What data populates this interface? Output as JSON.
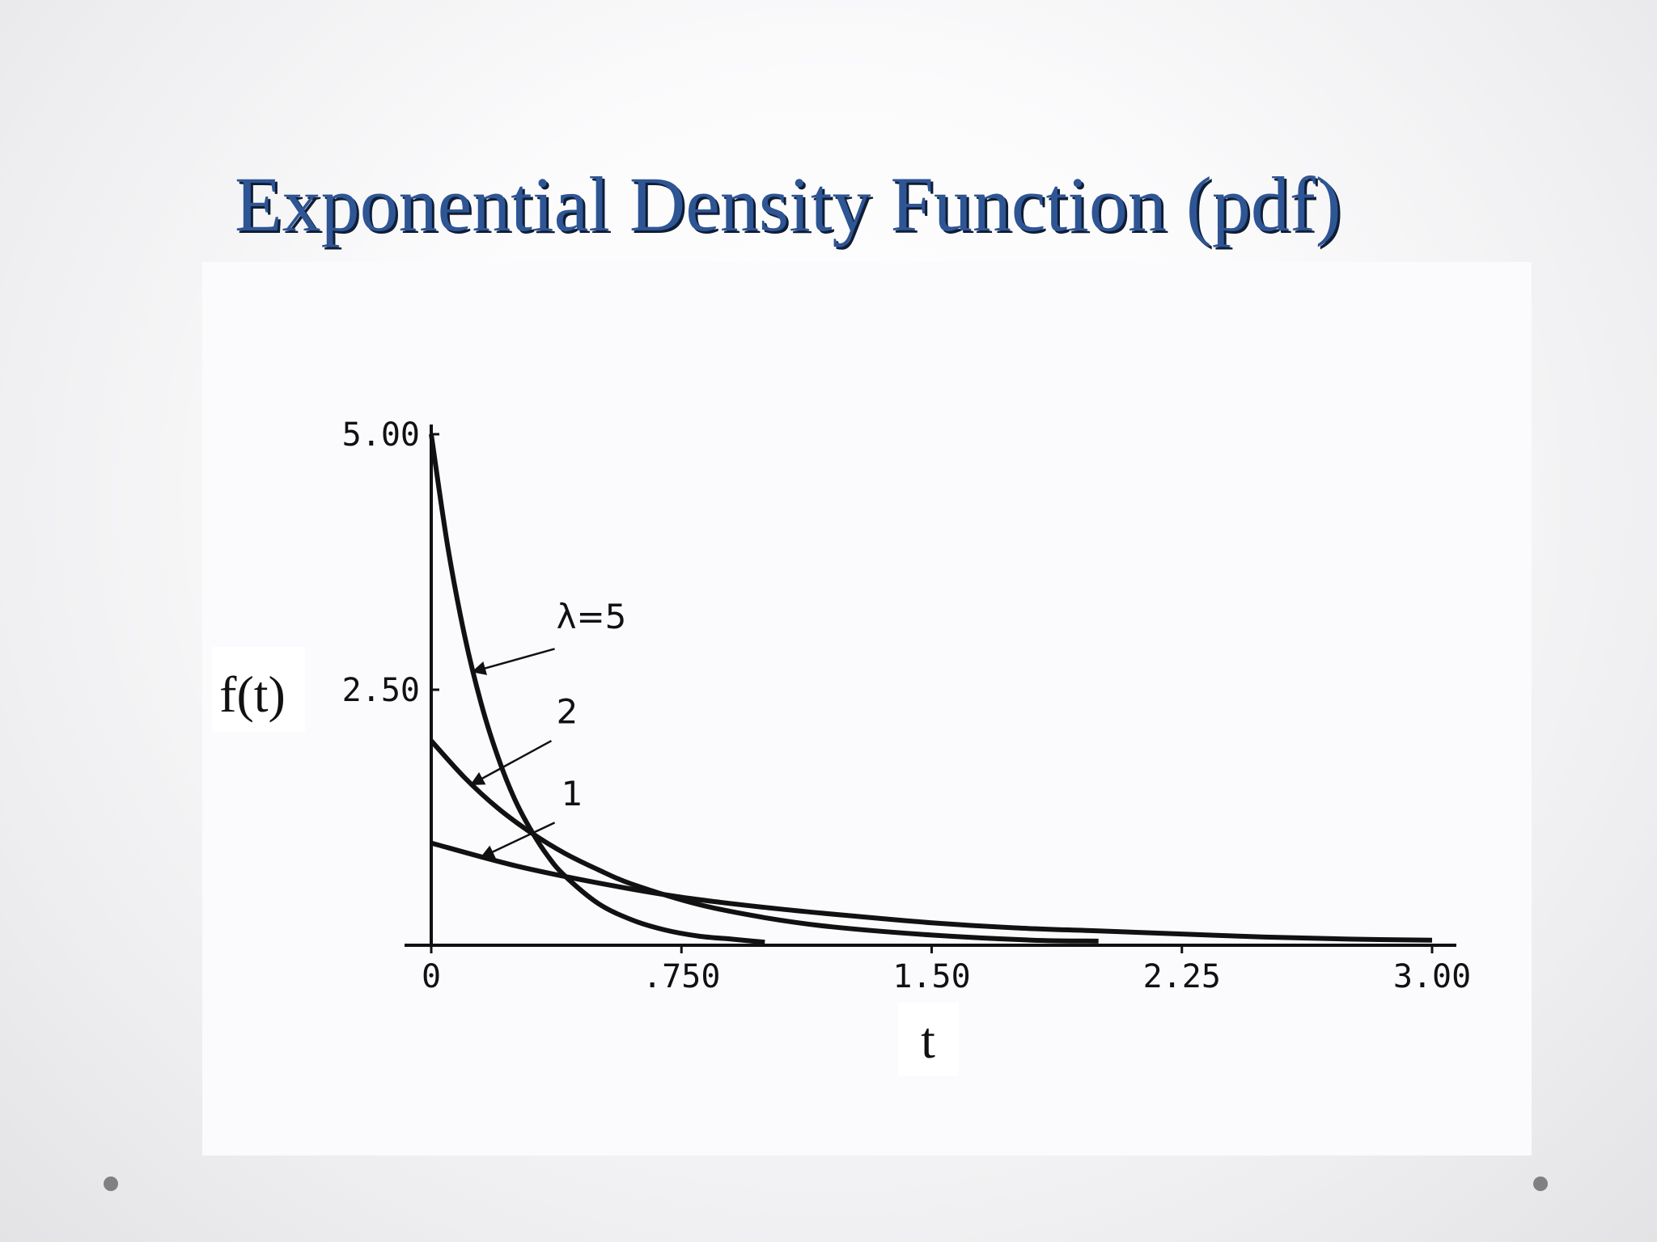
{
  "slide": {
    "title": "Exponential Density Function (pdf)"
  },
  "chart_data": {
    "type": "line",
    "title": "",
    "xlabel": "t",
    "ylabel": "f(t)",
    "xlim": [
      0,
      3.0
    ],
    "ylim": [
      0,
      5.0
    ],
    "x_ticks": [
      "0",
      ".750",
      "1.50",
      "2.25",
      "3.00"
    ],
    "y_ticks": [
      "2.50",
      "5.00"
    ],
    "grid": false,
    "legend": "none",
    "series": [
      {
        "name": "λ=5",
        "label": "λ=5",
        "x": [
          0,
          0.05,
          0.1,
          0.15,
          0.2,
          0.25,
          0.3,
          0.35,
          0.4,
          0.5,
          0.6,
          0.7,
          0.8,
          0.9,
          1.0
        ],
        "values": [
          5.0,
          3.89,
          3.03,
          2.36,
          1.84,
          1.43,
          1.12,
          0.87,
          0.68,
          0.41,
          0.25,
          0.15,
          0.09,
          0.06,
          0.03
        ]
      },
      {
        "name": "2",
        "label": "2",
        "x": [
          0,
          0.1,
          0.2,
          0.3,
          0.4,
          0.5,
          0.6,
          0.8,
          1.0,
          1.2,
          1.5,
          1.8,
          2.0
        ],
        "values": [
          2.0,
          1.64,
          1.34,
          1.1,
          0.9,
          0.74,
          0.6,
          0.4,
          0.27,
          0.18,
          0.1,
          0.05,
          0.04
        ]
      },
      {
        "name": "1",
        "label": "1",
        "x": [
          0,
          0.25,
          0.5,
          0.75,
          1.0,
          1.25,
          1.5,
          1.75,
          2.0,
          2.25,
          2.5,
          2.75,
          3.0
        ],
        "values": [
          1.0,
          0.78,
          0.61,
          0.47,
          0.37,
          0.29,
          0.22,
          0.17,
          0.14,
          0.11,
          0.08,
          0.06,
          0.05
        ]
      }
    ]
  }
}
